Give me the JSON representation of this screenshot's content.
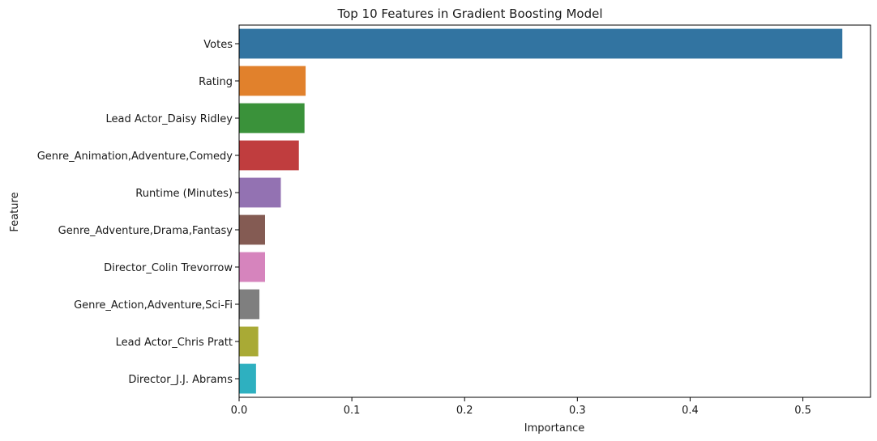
{
  "chart_data": {
    "type": "bar",
    "orientation": "horizontal",
    "title": "Top 10 Features in Gradient Boosting Model",
    "xlabel": "Importance",
    "ylabel": "Feature",
    "categories": [
      "Votes",
      "Rating",
      "Lead Actor_Daisy Ridley",
      "Genre_Animation,Adventure,Comedy",
      "Runtime (Minutes)",
      "Genre_Adventure,Drama,Fantasy",
      "Director_Colin Trevorrow",
      "Genre_Action,Adventure,Sci-Fi",
      "Lead Actor_Chris Pratt",
      "Director_J.J. Abrams"
    ],
    "values": [
      0.535,
      0.059,
      0.058,
      0.053,
      0.037,
      0.023,
      0.023,
      0.018,
      0.017,
      0.015
    ],
    "colors": [
      "#3274a1",
      "#e1812c",
      "#3a923a",
      "#c03d3e",
      "#9372b2",
      "#845b53",
      "#d684bd",
      "#7f7f7f",
      "#a9aa35",
      "#2eb0c0"
    ],
    "xlim": [
      0,
      0.56
    ],
    "xticks": [
      0,
      0.1,
      0.2,
      0.3,
      0.4,
      0.5
    ],
    "xtick_labels": [
      "0.0",
      "0.1",
      "0.2",
      "0.3",
      "0.4",
      "0.5"
    ],
    "grid": false,
    "legend": "none"
  }
}
